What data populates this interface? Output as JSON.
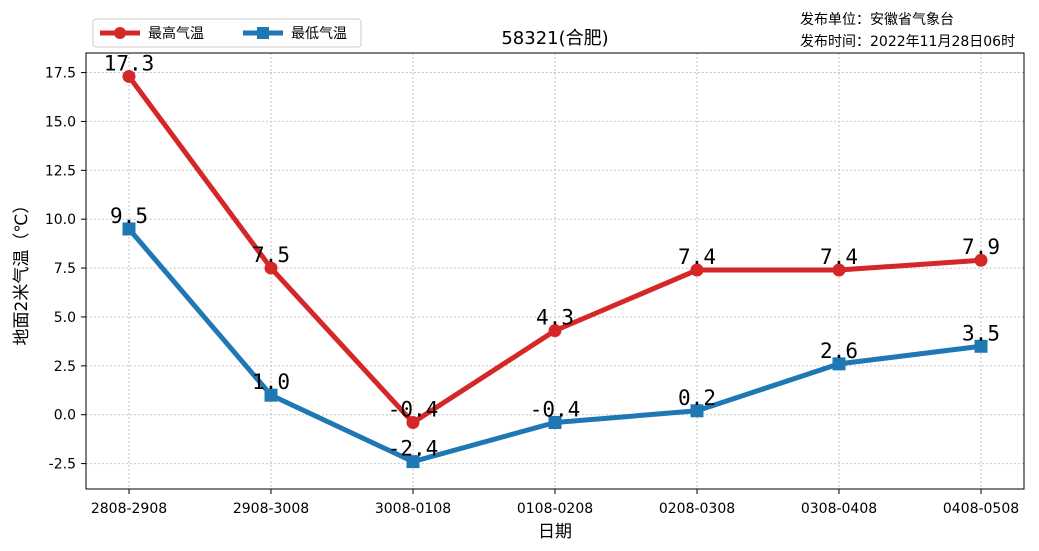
{
  "chart_data": {
    "type": "line",
    "title": "58321(合肥)",
    "publisher_line": "发布单位：安徽省气象台",
    "release_time_line": "发布时间：2022年11月28日06时",
    "xlabel": "日期",
    "ylabel": "地面2米气温（℃）",
    "categories": [
      "2808-2908",
      "2908-3008",
      "3008-0108",
      "0108-0208",
      "0208-0308",
      "0308-0408",
      "0408-0508"
    ],
    "ylim": [
      -3.8,
      18.5
    ],
    "yticks": [
      "-2.5",
      "0.0",
      "2.5",
      "5.0",
      "7.5",
      "10.0",
      "12.5",
      "15.0",
      "17.5"
    ],
    "grid": true,
    "legend_position": "upper-left",
    "series": [
      {
        "name": "最高气温",
        "color": "#d62728",
        "marker": "circle",
        "values": [
          17.3,
          7.5,
          -0.4,
          4.3,
          7.4,
          7.4,
          7.9
        ],
        "labels": [
          "17.3",
          "7.5",
          "-0.4",
          "4.3",
          "7.4",
          "7.4",
          "7.9"
        ]
      },
      {
        "name": "最低气温",
        "color": "#1f77b4",
        "marker": "square",
        "values": [
          9.5,
          1.0,
          -2.4,
          -0.4,
          0.2,
          2.6,
          3.5
        ],
        "labels": [
          "9.5",
          "1.0",
          "-2.4",
          "-0.4",
          "0.2",
          "2.6",
          "3.5"
        ]
      }
    ]
  }
}
